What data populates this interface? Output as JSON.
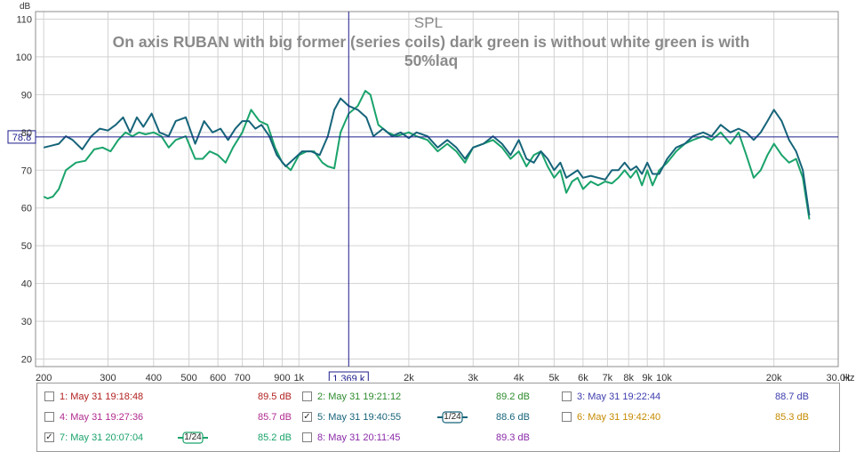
{
  "chart_data": {
    "type": "line",
    "title": "SPL",
    "subtitle": "On axis RUBAN with big former (series coils) dark green is without white green is with 50%laq",
    "ylabel": "dB",
    "xlabel": "Hz",
    "x_scale": "log",
    "xlim": [
      190,
      30000
    ],
    "ylim": [
      18,
      112
    ],
    "grid": true,
    "y_ticks": [
      20,
      30,
      40,
      50,
      60,
      70,
      80,
      90,
      100,
      110
    ],
    "x_ticks": [
      {
        "v": 200,
        "label": "200"
      },
      {
        "v": 300,
        "label": "300"
      },
      {
        "v": 400,
        "label": "400"
      },
      {
        "v": 500,
        "label": "500"
      },
      {
        "v": 600,
        "label": "600"
      },
      {
        "v": 700,
        "label": "700"
      },
      {
        "v": 900,
        "label": "900"
      },
      {
        "v": 1000,
        "label": "1k"
      },
      {
        "v": 2000,
        "label": "2k"
      },
      {
        "v": 3000,
        "label": "3k"
      },
      {
        "v": 4000,
        "label": "4k"
      },
      {
        "v": 5000,
        "label": "5k"
      },
      {
        "v": 6000,
        "label": "6k"
      },
      {
        "v": 7000,
        "label": "7k"
      },
      {
        "v": 8000,
        "label": "8k"
      },
      {
        "v": 9000,
        "label": "9k"
      },
      {
        "v": 10000,
        "label": "10k"
      },
      {
        "v": 20000,
        "label": "20k"
      },
      {
        "v": 30000,
        "label": "30.0k"
      }
    ],
    "minor_x": [
      800
    ],
    "cursor": {
      "x": 1369,
      "y": 78.8,
      "x_label": "1.369 k",
      "y_label": "78.8"
    },
    "series": [
      {
        "name": "5: May 31 19:40:55",
        "color": "#16647a",
        "points": [
          [
            200,
            76
          ],
          [
            210,
            76.5
          ],
          [
            220,
            77
          ],
          [
            230,
            79
          ],
          [
            240,
            78
          ],
          [
            255,
            75.5
          ],
          [
            270,
            79
          ],
          [
            285,
            81
          ],
          [
            300,
            80.5
          ],
          [
            315,
            82
          ],
          [
            330,
            84
          ],
          [
            345,
            80
          ],
          [
            360,
            84
          ],
          [
            375,
            81.5
          ],
          [
            395,
            85
          ],
          [
            415,
            80
          ],
          [
            440,
            79
          ],
          [
            460,
            83
          ],
          [
            490,
            84
          ],
          [
            520,
            77
          ],
          [
            550,
            83
          ],
          [
            580,
            80
          ],
          [
            610,
            81
          ],
          [
            640,
            78
          ],
          [
            670,
            81
          ],
          [
            700,
            83
          ],
          [
            730,
            83
          ],
          [
            760,
            81
          ],
          [
            790,
            82
          ],
          [
            830,
            79
          ],
          [
            870,
            74
          ],
          [
            920,
            71
          ],
          [
            970,
            73
          ],
          [
            1020,
            75
          ],
          [
            1080,
            75
          ],
          [
            1140,
            74
          ],
          [
            1200,
            79
          ],
          [
            1250,
            86
          ],
          [
            1300,
            89
          ],
          [
            1369,
            87
          ],
          [
            1450,
            86
          ],
          [
            1530,
            84
          ],
          [
            1600,
            79
          ],
          [
            1700,
            81
          ],
          [
            1800,
            79
          ],
          [
            1900,
            80
          ],
          [
            2000,
            78.5
          ],
          [
            2100,
            80
          ],
          [
            2250,
            79
          ],
          [
            2400,
            76
          ],
          [
            2550,
            78
          ],
          [
            2700,
            76
          ],
          [
            2850,
            73
          ],
          [
            3000,
            76
          ],
          [
            3200,
            77
          ],
          [
            3400,
            79
          ],
          [
            3600,
            77
          ],
          [
            3800,
            74
          ],
          [
            4000,
            78
          ],
          [
            4200,
            73
          ],
          [
            4400,
            72
          ],
          [
            4600,
            75
          ],
          [
            4800,
            73
          ],
          [
            5000,
            70
          ],
          [
            5200,
            72
          ],
          [
            5400,
            68
          ],
          [
            5600,
            69
          ],
          [
            5800,
            70
          ],
          [
            6000,
            68
          ],
          [
            6300,
            68.5
          ],
          [
            6600,
            68
          ],
          [
            6900,
            67.5
          ],
          [
            7200,
            70
          ],
          [
            7500,
            70
          ],
          [
            7800,
            72
          ],
          [
            8100,
            70
          ],
          [
            8400,
            71
          ],
          [
            8700,
            69
          ],
          [
            9000,
            72
          ],
          [
            9300,
            69
          ],
          [
            9700,
            69
          ],
          [
            10200,
            73
          ],
          [
            10800,
            76
          ],
          [
            11400,
            77
          ],
          [
            12000,
            79
          ],
          [
            12800,
            80
          ],
          [
            13500,
            79
          ],
          [
            14300,
            82
          ],
          [
            15200,
            80
          ],
          [
            16000,
            81
          ],
          [
            16800,
            80
          ],
          [
            17600,
            78
          ],
          [
            18400,
            80
          ],
          [
            19200,
            83
          ],
          [
            20000,
            86
          ],
          [
            21000,
            83
          ],
          [
            22000,
            78
          ],
          [
            23000,
            75
          ],
          [
            24000,
            70
          ],
          [
            25000,
            58
          ]
        ]
      },
      {
        "name": "7: May 31 20:07:04",
        "color": "#1aa36b",
        "points": [
          [
            200,
            63
          ],
          [
            205,
            62.5
          ],
          [
            212,
            63
          ],
          [
            220,
            65
          ],
          [
            230,
            70
          ],
          [
            245,
            72
          ],
          [
            260,
            72.5
          ],
          [
            275,
            75.5
          ],
          [
            290,
            76
          ],
          [
            305,
            75
          ],
          [
            320,
            78
          ],
          [
            335,
            80
          ],
          [
            350,
            79
          ],
          [
            365,
            80
          ],
          [
            380,
            79.5
          ],
          [
            400,
            80
          ],
          [
            420,
            79
          ],
          [
            440,
            76
          ],
          [
            460,
            78
          ],
          [
            490,
            79
          ],
          [
            520,
            73
          ],
          [
            545,
            73
          ],
          [
            570,
            75
          ],
          [
            600,
            74
          ],
          [
            630,
            72
          ],
          [
            660,
            76
          ],
          [
            700,
            80
          ],
          [
            740,
            86
          ],
          [
            780,
            83
          ],
          [
            820,
            82
          ],
          [
            860,
            76
          ],
          [
            900,
            72
          ],
          [
            950,
            70
          ],
          [
            1000,
            74
          ],
          [
            1050,
            75
          ],
          [
            1100,
            75
          ],
          [
            1160,
            72
          ],
          [
            1200,
            71
          ],
          [
            1250,
            70.5
          ],
          [
            1300,
            80
          ],
          [
            1369,
            85
          ],
          [
            1450,
            87
          ],
          [
            1520,
            91
          ],
          [
            1570,
            90
          ],
          [
            1650,
            82
          ],
          [
            1750,
            80
          ],
          [
            1850,
            79
          ],
          [
            2000,
            80
          ],
          [
            2100,
            79
          ],
          [
            2250,
            78
          ],
          [
            2400,
            75
          ],
          [
            2550,
            77
          ],
          [
            2700,
            75
          ],
          [
            2850,
            72
          ],
          [
            3000,
            76
          ],
          [
            3200,
            77
          ],
          [
            3400,
            78
          ],
          [
            3600,
            76
          ],
          [
            3800,
            73
          ],
          [
            4000,
            75
          ],
          [
            4200,
            71
          ],
          [
            4400,
            74
          ],
          [
            4600,
            75
          ],
          [
            4800,
            71
          ],
          [
            5000,
            68
          ],
          [
            5200,
            70
          ],
          [
            5400,
            64
          ],
          [
            5600,
            67
          ],
          [
            5800,
            68
          ],
          [
            6000,
            65
          ],
          [
            6300,
            67
          ],
          [
            6600,
            66
          ],
          [
            6900,
            67
          ],
          [
            7200,
            66.5
          ],
          [
            7500,
            68
          ],
          [
            7800,
            70
          ],
          [
            8100,
            68
          ],
          [
            8400,
            70
          ],
          [
            8700,
            66
          ],
          [
            9000,
            70
          ],
          [
            9300,
            66
          ],
          [
            9700,
            70
          ],
          [
            10200,
            72
          ],
          [
            10800,
            75
          ],
          [
            11400,
            77
          ],
          [
            12000,
            78
          ],
          [
            12800,
            79
          ],
          [
            13500,
            78
          ],
          [
            14300,
            80
          ],
          [
            15200,
            77
          ],
          [
            16000,
            80
          ],
          [
            16800,
            74
          ],
          [
            17600,
            68
          ],
          [
            18400,
            70
          ],
          [
            19200,
            74
          ],
          [
            20000,
            77
          ],
          [
            21000,
            74
          ],
          [
            22000,
            72
          ],
          [
            23000,
            73
          ],
          [
            24000,
            68
          ],
          [
            25000,
            57
          ]
        ]
      }
    ],
    "legend_items": [
      {
        "label": "1: May 31 19:18:48",
        "db": "89.5 dB",
        "checked": false,
        "color": "#b22020",
        "smoothing": ""
      },
      {
        "label": "2: May 31 19:21:12",
        "db": "89.2 dB",
        "checked": false,
        "color": "#2e8b2e",
        "smoothing": ""
      },
      {
        "label": "3: May 31 19:22:44",
        "db": "88.7 dB",
        "checked": false,
        "color": "#3c3cae",
        "smoothing": ""
      },
      {
        "label": "4: May 31 19:27:36",
        "db": "85.7 dB",
        "checked": false,
        "color": "#b02a8f",
        "smoothing": ""
      },
      {
        "label": "5: May 31 19:40:55",
        "db": "88.6 dB",
        "checked": true,
        "color": "#16647a",
        "smoothing": "1/24"
      },
      {
        "label": "6: May 31 19:42:40",
        "db": "85.3 dB",
        "checked": false,
        "color": "#c58a00",
        "smoothing": ""
      },
      {
        "label": "7: May 31 20:07:04",
        "db": "85.2 dB",
        "checked": true,
        "color": "#1aa36b",
        "smoothing": "1/24"
      },
      {
        "label": "8: May 31 20:11:45",
        "db": "89.3 dB",
        "checked": false,
        "color": "#8a2aa8",
        "smoothing": ""
      }
    ]
  }
}
